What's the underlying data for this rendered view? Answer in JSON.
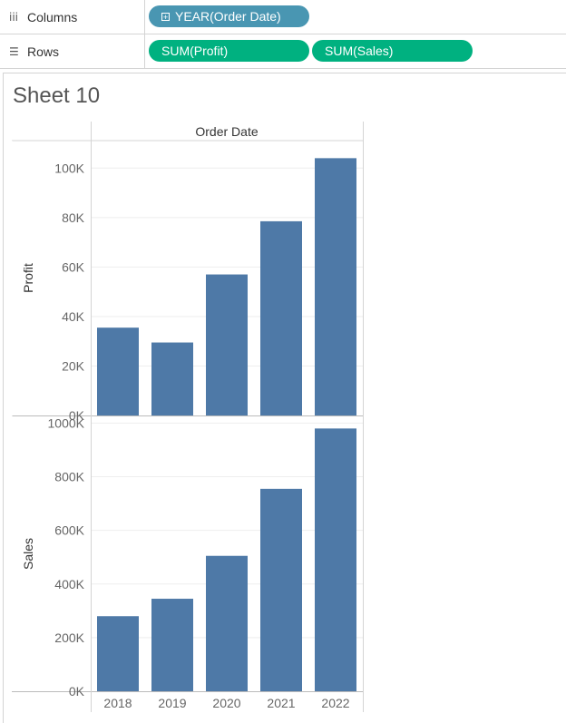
{
  "shelves": {
    "columns": {
      "label": "Columns",
      "icon": "iii",
      "pills": [
        {
          "label": "YEAR(Order Date)",
          "type": "dimension"
        }
      ]
    },
    "rows": {
      "label": "Rows",
      "icon": "☰",
      "pills": [
        {
          "label": "SUM(Profit)",
          "type": "measure"
        },
        {
          "label": "SUM(Sales)",
          "type": "measure"
        }
      ]
    }
  },
  "sheet": {
    "title": "Sheet 10"
  },
  "colors": {
    "bar": "#4e79a7",
    "dimension_pill": "#4996b2",
    "measure_pill": "#00b180"
  },
  "chart_data": {
    "type": "bar",
    "header": "Order Date",
    "categories": [
      "2018",
      "2019",
      "2020",
      "2021",
      "2022"
    ],
    "panes": [
      {
        "ylabel": "Profit",
        "values": [
          35500,
          29500,
          57000,
          78500,
          104000
        ],
        "ylim": [
          0,
          110000
        ],
        "ticks": [
          0,
          20000,
          40000,
          60000,
          80000,
          100000
        ],
        "tick_labels": [
          "0K",
          "20K",
          "40K",
          "60K",
          "80K",
          "100K"
        ]
      },
      {
        "ylabel": "Sales",
        "values": [
          280000,
          345000,
          505000,
          755000,
          980000
        ],
        "ylim": [
          0,
          1015000
        ],
        "ticks": [
          0,
          200000,
          400000,
          600000,
          800000,
          1000000
        ],
        "tick_labels": [
          "0K",
          "200K",
          "400K",
          "600K",
          "800K",
          "1000K"
        ]
      }
    ]
  }
}
